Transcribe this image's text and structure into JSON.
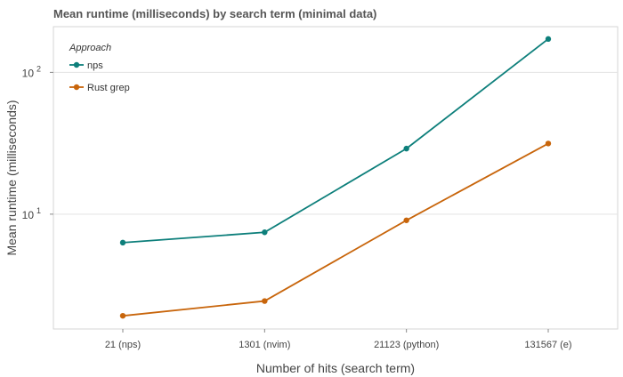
{
  "chart_data": {
    "type": "line",
    "title": "Mean runtime (milliseconds) by search term (minimal data)",
    "xlabel": "Number of hits (search term)",
    "ylabel": "Mean runtime (milliseconds)",
    "y_scale": "log",
    "ylim": [
      1.55,
      210
    ],
    "grid": "horizontal",
    "legend": {
      "title": "Approach",
      "position": "top-left"
    },
    "categories": [
      "21 (nps)",
      "1301 (nvim)",
      "21123 (python)",
      "131567 (e)"
    ],
    "y_ticks": [
      {
        "value": 10,
        "base": "10",
        "exp": "1"
      },
      {
        "value": 100,
        "base": "10",
        "exp": "2"
      }
    ],
    "series": [
      {
        "name": "nps",
        "color": "#0d7f7b",
        "values": [
          6.3,
          7.45,
          29.0,
          172.0
        ]
      },
      {
        "name": "Rust grep",
        "color": "#c8650b",
        "values": [
          1.92,
          2.44,
          9.05,
          31.5
        ]
      }
    ]
  }
}
